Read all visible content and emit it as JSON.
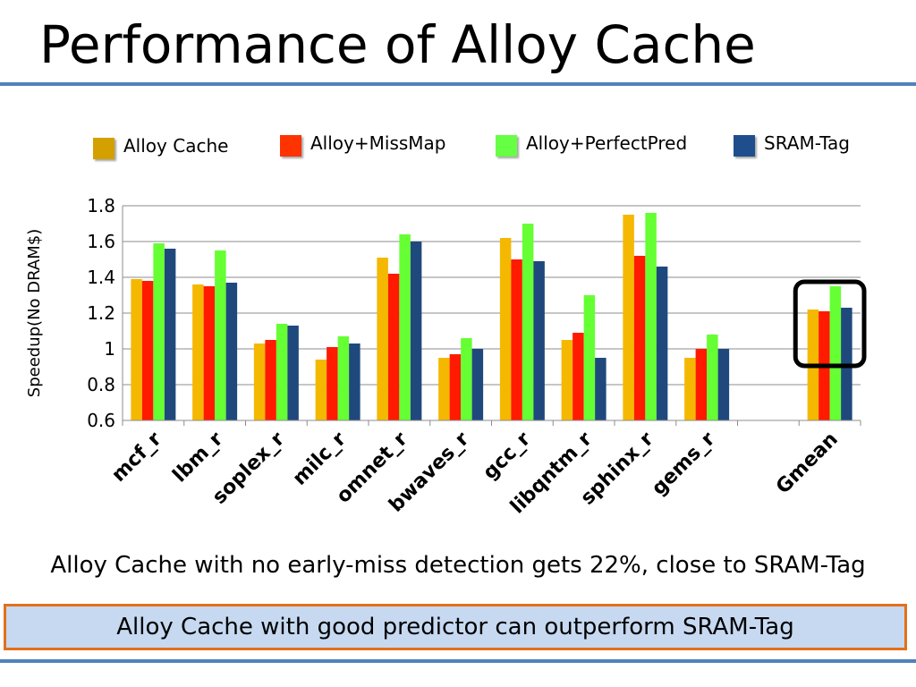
{
  "slide": {
    "title": "Performance of Alloy Cache",
    "caption": "Alloy Cache with no early-miss detection gets 22%, close to SRAM-Tag",
    "callout": "Alloy Cache with good predictor can outperform SRAM-Tag"
  },
  "colors": {
    "rule": "#4f81bd",
    "callout_fill": "#c6d9f1",
    "callout_border": "#e3701a",
    "highlight_box": "#000000"
  },
  "chart_data": {
    "type": "bar",
    "categories": [
      "mcf_r",
      "lbm_r",
      "soplex_r",
      "milc_r",
      "omnet_r",
      "bwaves_r",
      "gcc_r",
      "libqntm_r",
      "sphinx_r",
      "gems_r",
      "",
      "Gmean"
    ],
    "series": [
      {
        "name": "Alloy Cache",
        "color": "#f5b800",
        "values": [
          1.39,
          1.36,
          1.03,
          0.94,
          1.51,
          0.95,
          1.62,
          1.05,
          1.75,
          0.95,
          null,
          1.22
        ]
      },
      {
        "name": "Alloy+MissMap",
        "color": "#ff1a00",
        "values": [
          1.38,
          1.35,
          1.05,
          1.01,
          1.42,
          0.97,
          1.5,
          1.09,
          1.52,
          1.0,
          null,
          1.21
        ]
      },
      {
        "name": "Alloy+PerfectPred",
        "color": "#66ff33",
        "values": [
          1.59,
          1.55,
          1.14,
          1.07,
          1.64,
          1.06,
          1.7,
          1.3,
          1.76,
          1.08,
          null,
          1.35
        ]
      },
      {
        "name": "SRAM-Tag",
        "color": "#1f497d",
        "values": [
          1.56,
          1.37,
          1.13,
          1.03,
          1.6,
          1.0,
          1.49,
          0.95,
          1.46,
          1.0,
          null,
          1.23
        ]
      }
    ],
    "legend_swatch_colors": [
      "#d4a000",
      "#ff3300",
      "#66ff44",
      "#1f4e8c"
    ],
    "ylabel": "Speedup(No DRAM$)",
    "ylim": [
      0.6,
      1.8
    ],
    "yticks": [
      0.6,
      0.8,
      1,
      1.2,
      1.4,
      1.6,
      1.8
    ],
    "ytick_labels": [
      "0.6",
      "0.8",
      "1",
      "1.2",
      "1.4",
      "1.6",
      "1.8"
    ],
    "grid": true,
    "legend_position": "top",
    "highlight": "Gmean"
  }
}
